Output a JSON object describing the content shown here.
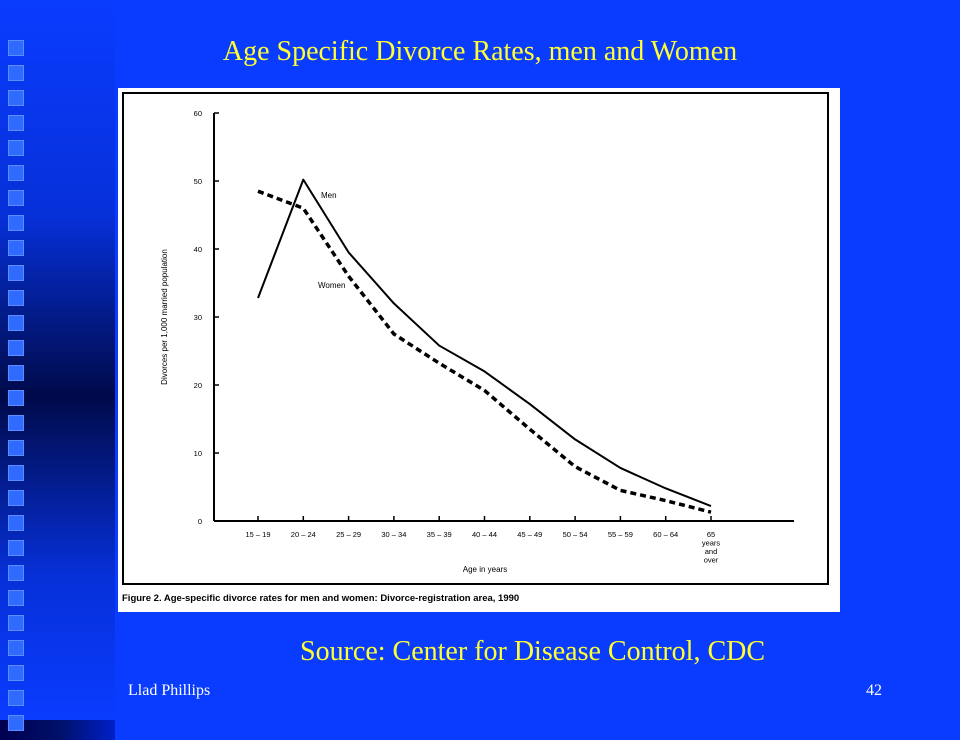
{
  "slide": {
    "title": "Age Specific Divorce Rates, men and Women",
    "source": "Source: Center for Disease Control, CDC",
    "author": "Llad Phillips",
    "page_number": "42"
  },
  "colors": {
    "background": "#0a3cff",
    "title_text": "#ffff33",
    "footer_text": "#ffffff",
    "chart_line": "#000000"
  },
  "chart_data": {
    "type": "line",
    "title": "",
    "xlabel": "Age in years",
    "ylabel": "Divorces per 1,000 married population",
    "caption": "Figure 2. Age-specific divorce rates for men and women: Divorce-registration area, 1990",
    "categories": [
      "15 – 19",
      "20 – 24",
      "25 – 29",
      "30 – 34",
      "35 – 39",
      "40 – 44",
      "45 – 49",
      "50 – 54",
      "55 – 59",
      "60 – 64",
      "65 years and over"
    ],
    "ylim": [
      0,
      60
    ],
    "yticks": [
      0,
      10,
      20,
      30,
      40,
      50,
      60
    ],
    "grid": false,
    "series": [
      {
        "name": "Men",
        "style": "solid",
        "values": [
          32.8,
          50.2,
          39.5,
          32.0,
          25.8,
          22.0,
          17.2,
          12.0,
          7.8,
          4.8,
          2.2
        ]
      },
      {
        "name": "Women",
        "style": "dashed",
        "values": [
          48.5,
          46.0,
          36.0,
          27.5,
          23.2,
          19.2,
          13.5,
          8.0,
          4.5,
          3.0,
          1.3
        ]
      }
    ]
  }
}
